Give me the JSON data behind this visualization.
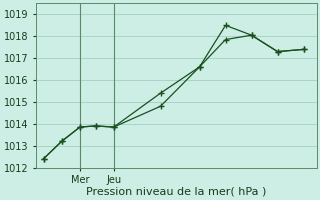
{
  "xlabel": "Pression niveau de la mer( hPa )",
  "bg_color": "#cceee4",
  "grid_color": "#aad4c8",
  "line_color": "#1a5020",
  "vline_color": "#5a8a6a",
  "ylim": [
    1012,
    1019.5
  ],
  "yticks": [
    1012,
    1013,
    1014,
    1015,
    1016,
    1017,
    1018,
    1019
  ],
  "series1_x": [
    0,
    0.7,
    1.4,
    2.0,
    2.7,
    4.5,
    6.0,
    7.0,
    8.0,
    9.0,
    10.0
  ],
  "series1_y": [
    1012.4,
    1013.2,
    1013.85,
    1013.9,
    1013.85,
    1015.4,
    1016.6,
    1017.85,
    1018.05,
    1017.3,
    1017.4
  ],
  "series2_x": [
    0,
    0.7,
    1.4,
    2.0,
    2.7,
    4.5,
    6.0,
    7.0,
    8.0,
    9.0,
    10.0
  ],
  "series2_y": [
    1012.4,
    1013.2,
    1013.85,
    1013.9,
    1013.85,
    1014.8,
    1016.6,
    1018.5,
    1018.05,
    1017.3,
    1017.4
  ],
  "vline_x1": 1.4,
  "vline_x2": 2.7,
  "xtick_positions": [
    1.4,
    2.7
  ],
  "xtick_labels": [
    "Mer",
    "Jeu"
  ],
  "xlabel_fontsize": 8,
  "ytick_fontsize": 7,
  "xtick_fontsize": 7,
  "xlim": [
    -0.3,
    10.5
  ]
}
